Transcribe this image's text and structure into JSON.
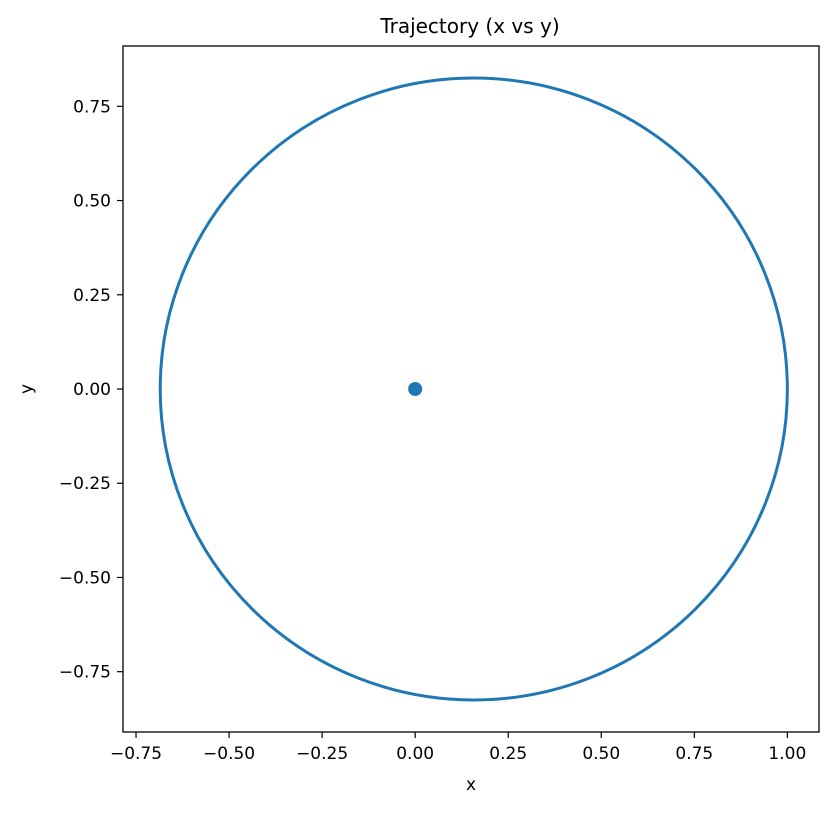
{
  "chart_data": {
    "type": "line",
    "title": "Trajectory (x vs y)",
    "xlabel": "x",
    "ylabel": "y",
    "xlim": [
      -0.785,
      1.085
    ],
    "ylim": [
      -0.91,
      0.91
    ],
    "xticks": [
      -0.75,
      -0.5,
      -0.25,
      0.0,
      0.25,
      0.5,
      0.75,
      1.0
    ],
    "xtick_labels": [
      "−0.75",
      "−0.50",
      "−0.25",
      "0.00",
      "0.25",
      "0.50",
      "0.75",
      "1.00"
    ],
    "yticks": [
      -0.75,
      -0.5,
      -0.25,
      0.0,
      0.25,
      0.5,
      0.75
    ],
    "ytick_labels": [
      "−0.75",
      "−0.50",
      "−0.25",
      "0.00",
      "0.25",
      "0.50",
      "0.75"
    ],
    "grid": false,
    "series": [
      {
        "name": "trajectory",
        "kind": "ellipse-orbit",
        "x_min": -0.685,
        "x_max": 1.0,
        "y_min": -0.825,
        "y_max": 0.825,
        "color": "#1f77b4"
      },
      {
        "name": "central body",
        "kind": "point",
        "x": 0.0,
        "y": 0.0,
        "color": "#1f77b4"
      }
    ]
  }
}
